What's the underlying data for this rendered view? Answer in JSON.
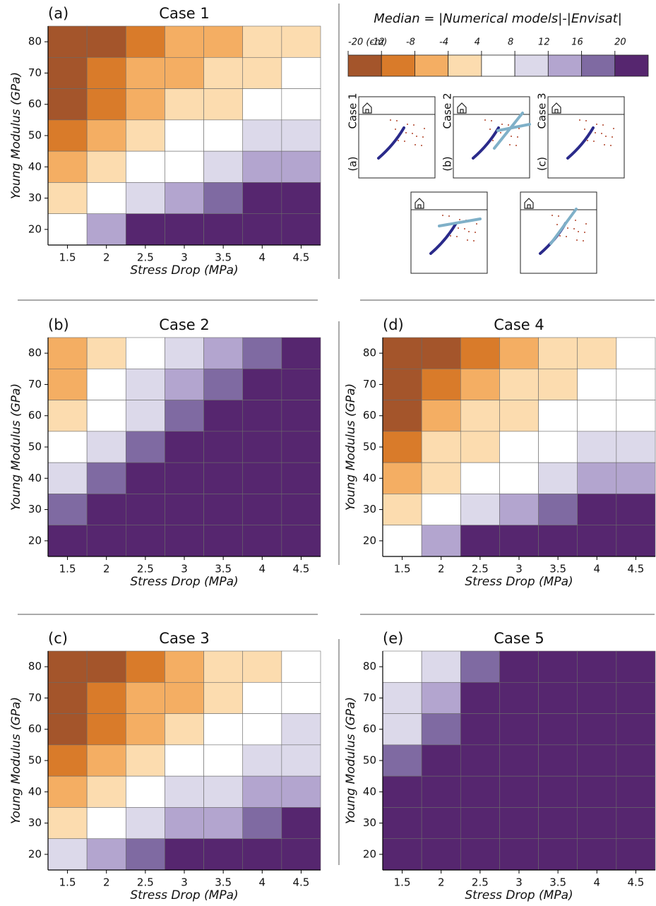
{
  "chart_data": [
    {
      "type": "heatmap",
      "label": "(a)",
      "title": "Case 1",
      "xlabel": "Stress Drop (MPa)",
      "ylabel": "Young Modulus (GPa)",
      "x": [
        1.5,
        2,
        2.5,
        3,
        3.5,
        4,
        4.5
      ],
      "y": [
        80,
        70,
        60,
        50,
        40,
        30,
        20
      ],
      "z": [
        [
          -16,
          -16,
          -10,
          -6,
          -6,
          0,
          0
        ],
        [
          -16,
          -10,
          -6,
          -6,
          0,
          0,
          6
        ],
        [
          -16,
          -10,
          -6,
          0,
          0,
          6,
          6
        ],
        [
          -10,
          -6,
          0,
          6,
          6,
          10,
          10
        ],
        [
          -6,
          0,
          6,
          6,
          10,
          14,
          14
        ],
        [
          0,
          6,
          10,
          14,
          18,
          24,
          24
        ],
        [
          6,
          14,
          24,
          24,
          24,
          24,
          24
        ]
      ]
    },
    {
      "type": "heatmap",
      "label": "(b)",
      "title": "Case 2",
      "xlabel": "Stress Drop (MPa)",
      "ylabel": "Young Modulus (GPa)",
      "x": [
        1.5,
        2,
        2.5,
        3,
        3.5,
        4,
        4.5
      ],
      "y": [
        80,
        70,
        60,
        50,
        40,
        30,
        20
      ],
      "z": [
        [
          -6,
          0,
          6,
          10,
          14,
          18,
          24
        ],
        [
          -6,
          6,
          10,
          14,
          18,
          24,
          24
        ],
        [
          0,
          6,
          10,
          18,
          24,
          24,
          24
        ],
        [
          6,
          10,
          18,
          24,
          24,
          24,
          24
        ],
        [
          10,
          18,
          24,
          24,
          24,
          24,
          24
        ],
        [
          18,
          24,
          24,
          24,
          24,
          24,
          24
        ],
        [
          24,
          24,
          24,
          24,
          24,
          24,
          24
        ]
      ]
    },
    {
      "type": "heatmap",
      "label": "(c)",
      "title": "Case 3",
      "xlabel": "Stress Drop (MPa)",
      "ylabel": "Young Modulus (GPa)",
      "x": [
        1.5,
        2,
        2.5,
        3,
        3.5,
        4,
        4.5
      ],
      "y": [
        80,
        70,
        60,
        50,
        40,
        30,
        20
      ],
      "z": [
        [
          -16,
          -16,
          -10,
          -6,
          0,
          0,
          6
        ],
        [
          -16,
          -10,
          -6,
          -6,
          0,
          6,
          6
        ],
        [
          -16,
          -10,
          -6,
          0,
          6,
          6,
          10
        ],
        [
          -10,
          -6,
          0,
          6,
          6,
          10,
          10
        ],
        [
          -6,
          0,
          6,
          10,
          10,
          14,
          14
        ],
        [
          0,
          6,
          10,
          14,
          14,
          18,
          24
        ],
        [
          10,
          14,
          18,
          24,
          24,
          24,
          24
        ]
      ]
    },
    {
      "type": "heatmap",
      "label": "(d)",
      "title": "Case 4",
      "xlabel": "Stress Drop (MPa)",
      "ylabel": "Young Modulus (GPa)",
      "x": [
        1.5,
        2,
        2.5,
        3,
        3.5,
        4,
        4.5
      ],
      "y": [
        80,
        70,
        60,
        50,
        40,
        30,
        20
      ],
      "z": [
        [
          -16,
          -16,
          -10,
          -6,
          0,
          0,
          6
        ],
        [
          -16,
          -10,
          -6,
          0,
          0,
          6,
          6
        ],
        [
          -16,
          -6,
          0,
          0,
          6,
          6,
          6
        ],
        [
          -10,
          0,
          0,
          6,
          6,
          10,
          10
        ],
        [
          -6,
          0,
          6,
          6,
          10,
          14,
          14
        ],
        [
          0,
          6,
          10,
          14,
          18,
          24,
          24
        ],
        [
          6,
          14,
          24,
          24,
          24,
          24,
          24
        ]
      ]
    },
    {
      "type": "heatmap",
      "label": "(e)",
      "title": "Case 5",
      "xlabel": "Stress Drop (MPa)",
      "ylabel": "Young Modulus (GPa)",
      "x": [
        1.5,
        2,
        2.5,
        3,
        3.5,
        4,
        4.5
      ],
      "y": [
        80,
        70,
        60,
        50,
        40,
        30,
        20
      ],
      "z": [
        [
          6,
          10,
          18,
          24,
          24,
          24,
          24
        ],
        [
          10,
          14,
          24,
          24,
          24,
          24,
          24
        ],
        [
          10,
          18,
          24,
          24,
          24,
          24,
          24
        ],
        [
          18,
          24,
          24,
          24,
          24,
          24,
          24
        ],
        [
          24,
          24,
          24,
          24,
          24,
          24,
          24
        ],
        [
          24,
          24,
          24,
          24,
          24,
          24,
          24
        ],
        [
          24,
          24,
          24,
          24,
          24,
          24,
          24
        ]
      ]
    }
  ],
  "colorbar": {
    "title": "Median = |Numerical models|-|Envisat|",
    "ticks": [
      {
        "value": -20,
        "label": "-20 (cm)"
      },
      -12,
      -8,
      -4,
      4,
      8,
      12,
      16,
      20
    ],
    "colors": [
      "#a4552b",
      "#d97b2a",
      "#f4ae63",
      "#fcdcaf",
      "#ffffff",
      "#dcd9ea",
      "#b3a5cf",
      "#7f6aa2",
      "#56266f"
    ]
  },
  "schematics": [
    {
      "tag": "(a)",
      "label": "Case 1"
    },
    {
      "tag": "(b)",
      "label": "Case 2"
    },
    {
      "tag": "(c)",
      "label": "Case 3"
    }
  ]
}
